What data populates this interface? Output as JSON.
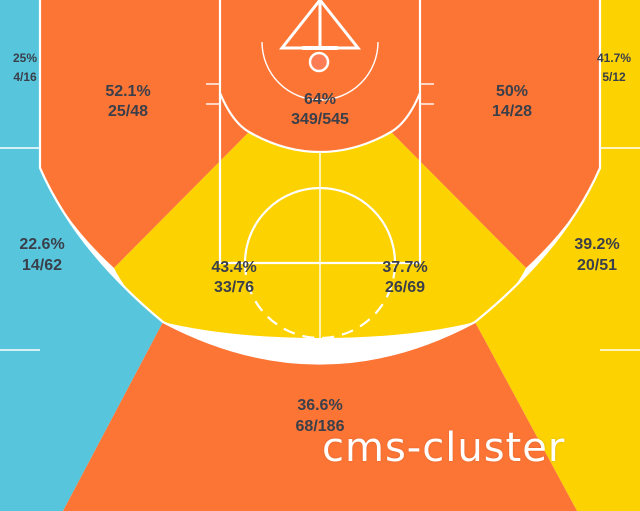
{
  "colors": {
    "hot": "#fd7535",
    "warm": "#fdd201",
    "cold": "#57c6dc",
    "rim": "#fc7d55",
    "lines": "#ffffff",
    "label": "#3a3f4a"
  },
  "zones": {
    "left_corner": {
      "pct": "25%",
      "made_att": "4/16",
      "color": "cold"
    },
    "right_corner": {
      "pct": "41.7%",
      "made_att": "5/12",
      "color": "warm"
    },
    "left_baseline_mid": {
      "pct": "52.1%",
      "made_att": "25/48",
      "color": "hot"
    },
    "restricted_area": {
      "pct": "64%",
      "made_att": "349/545",
      "color": "hot"
    },
    "right_baseline_mid": {
      "pct": "50%",
      "made_att": "14/28",
      "color": "hot"
    },
    "left_wing_three": {
      "pct": "22.6%",
      "made_att": "14/62",
      "color": "cold"
    },
    "left_elbow_mid": {
      "pct": "43.4%",
      "made_att": "33/76",
      "color": "warm"
    },
    "right_elbow_mid": {
      "pct": "37.7%",
      "made_att": "26/69",
      "color": "warm"
    },
    "right_wing_three": {
      "pct": "39.2%",
      "made_att": "20/51",
      "color": "warm"
    },
    "top_key_three": {
      "pct": "36.6%",
      "made_att": "68/186",
      "color": "hot"
    }
  },
  "watermark": "cms-cluster"
}
